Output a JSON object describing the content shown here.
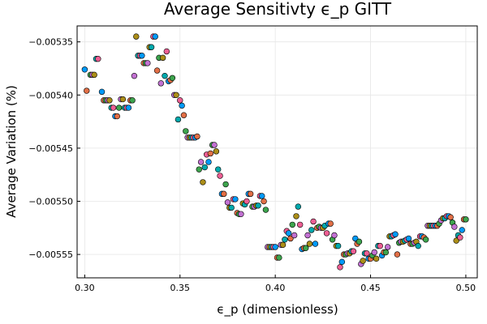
{
  "chart_data": {
    "type": "scatter",
    "title": "Average Sensitivty ϵ_p GITT",
    "xlabel": "ϵ_p (dimensionless)",
    "ylabel": "Average Variation (%)",
    "xlim": [
      0.296,
      0.506
    ],
    "ylim": [
      -0.005572,
      -0.005335
    ],
    "xticks": [
      0.3,
      0.35,
      0.4,
      0.45,
      0.5
    ],
    "xtick_labels": [
      "0.30",
      "0.35",
      "0.40",
      "0.45",
      "0.50"
    ],
    "yticks": [
      -0.00555,
      -0.0055,
      -0.00545,
      -0.0054,
      -0.00535
    ],
    "ytick_labels": [
      "−0.00555",
      "−0.00550",
      "−0.00545",
      "−0.00540",
      "−0.00535"
    ],
    "grid": true,
    "legend": "none",
    "palette": [
      "#009af9",
      "#e26f46",
      "#3da44d",
      "#c271d2",
      "#ac8e18",
      "#00a9ad",
      "#ed5e93"
    ],
    "points": [
      [
        0.3,
        -0.005376
      ],
      [
        0.301,
        -0.005396
      ],
      [
        0.303,
        -0.005381
      ],
      [
        0.304,
        -0.005381
      ],
      [
        0.305,
        -0.005381
      ],
      [
        0.306,
        -0.005366
      ],
      [
        0.307,
        -0.005366
      ],
      [
        0.309,
        -0.005397
      ],
      [
        0.31,
        -0.005405
      ],
      [
        0.311,
        -0.005405
      ],
      [
        0.312,
        -0.005405
      ],
      [
        0.313,
        -0.005405
      ],
      [
        0.314,
        -0.005412
      ],
      [
        0.315,
        -0.005412
      ],
      [
        0.316,
        -0.00542
      ],
      [
        0.317,
        -0.00542
      ],
      [
        0.318,
        -0.005412
      ],
      [
        0.319,
        -0.005404
      ],
      [
        0.32,
        -0.005404
      ],
      [
        0.321,
        -0.005412
      ],
      [
        0.322,
        -0.005412
      ],
      [
        0.323,
        -0.005412
      ],
      [
        0.324,
        -0.005405
      ],
      [
        0.325,
        -0.005405
      ],
      [
        0.326,
        -0.005382
      ],
      [
        0.327,
        -0.005345
      ],
      [
        0.328,
        -0.005363
      ],
      [
        0.329,
        -0.005363
      ],
      [
        0.33,
        -0.005363
      ],
      [
        0.331,
        -0.00537
      ],
      [
        0.332,
        -0.00537
      ],
      [
        0.333,
        -0.00537
      ],
      [
        0.334,
        -0.005355
      ],
      [
        0.335,
        -0.005355
      ],
      [
        0.336,
        -0.005345
      ],
      [
        0.337,
        -0.005345
      ],
      [
        0.338,
        -0.005377
      ],
      [
        0.339,
        -0.005365
      ],
      [
        0.34,
        -0.005389
      ],
      [
        0.341,
        -0.005365
      ],
      [
        0.342,
        -0.005382
      ],
      [
        0.343,
        -0.005359
      ],
      [
        0.344,
        -0.005387
      ],
      [
        0.345,
        -0.005386
      ],
      [
        0.346,
        -0.005384
      ],
      [
        0.347,
        -0.0054
      ],
      [
        0.348,
        -0.0054
      ],
      [
        0.349,
        -0.005423
      ],
      [
        0.35,
        -0.005405
      ],
      [
        0.351,
        -0.00541
      ],
      [
        0.352,
        -0.005419
      ],
      [
        0.353,
        -0.005434
      ],
      [
        0.354,
        -0.00544
      ],
      [
        0.355,
        -0.00544
      ],
      [
        0.356,
        -0.00544
      ],
      [
        0.357,
        -0.00544
      ],
      [
        0.358,
        -0.00544
      ],
      [
        0.359,
        -0.005439
      ],
      [
        0.36,
        -0.00547
      ],
      [
        0.361,
        -0.005463
      ],
      [
        0.362,
        -0.005482
      ],
      [
        0.363,
        -0.005468
      ],
      [
        0.364,
        -0.005456
      ],
      [
        0.365,
        -0.005463
      ],
      [
        0.366,
        -0.005455
      ],
      [
        0.367,
        -0.005447
      ],
      [
        0.368,
        -0.005447
      ],
      [
        0.369,
        -0.005453
      ],
      [
        0.37,
        -0.00547
      ],
      [
        0.371,
        -0.005476
      ],
      [
        0.372,
        -0.005493
      ],
      [
        0.373,
        -0.005493
      ],
      [
        0.374,
        -0.005484
      ],
      [
        0.375,
        -0.005501
      ],
      [
        0.376,
        -0.005506
      ],
      [
        0.377,
        -0.005506
      ],
      [
        0.378,
        -0.005498
      ],
      [
        0.379,
        -0.005498
      ],
      [
        0.38,
        -0.005511
      ],
      [
        0.381,
        -0.005512
      ],
      [
        0.382,
        -0.005512
      ],
      [
        0.383,
        -0.005502
      ],
      [
        0.384,
        -0.005503
      ],
      [
        0.385,
        -0.0055
      ],
      [
        0.386,
        -0.005493
      ],
      [
        0.387,
        -0.005493
      ],
      [
        0.388,
        -0.005505
      ],
      [
        0.389,
        -0.005505
      ],
      [
        0.39,
        -0.005504
      ],
      [
        0.391,
        -0.005504
      ],
      [
        0.392,
        -0.005495
      ],
      [
        0.393,
        -0.005495
      ],
      [
        0.394,
        -0.0055
      ],
      [
        0.395,
        -0.005508
      ],
      [
        0.396,
        -0.005543
      ],
      [
        0.397,
        -0.005543
      ],
      [
        0.398,
        -0.005543
      ],
      [
        0.399,
        -0.005543
      ],
      [
        0.4,
        -0.005543
      ],
      [
        0.401,
        -0.005553
      ],
      [
        0.402,
        -0.005553
      ],
      [
        0.403,
        -0.005541
      ],
      [
        0.404,
        -0.005541
      ],
      [
        0.405,
        -0.005536
      ],
      [
        0.406,
        -0.005528
      ],
      [
        0.407,
        -0.00553
      ],
      [
        0.408,
        -0.005535
      ],
      [
        0.409,
        -0.005522
      ],
      [
        0.41,
        -0.005532
      ],
      [
        0.411,
        -0.005514
      ],
      [
        0.412,
        -0.005505
      ],
      [
        0.413,
        -0.005522
      ],
      [
        0.414,
        -0.005545
      ],
      [
        0.415,
        -0.005544
      ],
      [
        0.416,
        -0.005544
      ],
      [
        0.417,
        -0.005532
      ],
      [
        0.418,
        -0.00554
      ],
      [
        0.419,
        -0.005527
      ],
      [
        0.42,
        -0.005519
      ],
      [
        0.421,
        -0.00554
      ],
      [
        0.422,
        -0.005525
      ],
      [
        0.423,
        -0.005524
      ],
      [
        0.424,
        -0.005525
      ],
      [
        0.425,
        -0.005525
      ],
      [
        0.426,
        -0.005523
      ],
      [
        0.427,
        -0.00553
      ],
      [
        0.428,
        -0.005521
      ],
      [
        0.429,
        -0.005521
      ],
      [
        0.43,
        -0.005536
      ],
      [
        0.431,
        -0.005532
      ],
      [
        0.432,
        -0.005542
      ],
      [
        0.433,
        -0.005542
      ],
      [
        0.434,
        -0.005562
      ],
      [
        0.435,
        -0.005557
      ],
      [
        0.436,
        -0.00555
      ],
      [
        0.437,
        -0.00555
      ],
      [
        0.438,
        -0.005549
      ],
      [
        0.439,
        -0.005549
      ],
      [
        0.44,
        -0.005547
      ],
      [
        0.441,
        -0.005547
      ],
      [
        0.442,
        -0.005535
      ],
      [
        0.443,
        -0.00554
      ],
      [
        0.444,
        -0.005538
      ],
      [
        0.445,
        -0.005559
      ],
      [
        0.446,
        -0.005556
      ],
      [
        0.447,
        -0.005549
      ],
      [
        0.448,
        -0.005549
      ],
      [
        0.449,
        -0.005554
      ],
      [
        0.45,
        -0.005554
      ],
      [
        0.451,
        -0.005551
      ],
      [
        0.452,
        -0.005548
      ],
      [
        0.453,
        -0.005554
      ],
      [
        0.454,
        -0.005542
      ],
      [
        0.455,
        -0.005542
      ],
      [
        0.456,
        -0.005551
      ],
      [
        0.457,
        -0.005548
      ],
      [
        0.458,
        -0.005548
      ],
      [
        0.459,
        -0.005543
      ],
      [
        0.46,
        -0.005533
      ],
      [
        0.461,
        -0.005533
      ],
      [
        0.462,
        -0.005532
      ],
      [
        0.463,
        -0.005531
      ],
      [
        0.464,
        -0.00555
      ],
      [
        0.465,
        -0.005539
      ],
      [
        0.466,
        -0.005538
      ],
      [
        0.467,
        -0.005538
      ],
      [
        0.468,
        -0.005537
      ],
      [
        0.469,
        -0.005536
      ],
      [
        0.47,
        -0.005535
      ],
      [
        0.471,
        -0.00554
      ],
      [
        0.472,
        -0.00554
      ],
      [
        0.473,
        -0.005539
      ],
      [
        0.474,
        -0.005538
      ],
      [
        0.475,
        -0.005542
      ],
      [
        0.476,
        -0.005533
      ],
      [
        0.477,
        -0.005533
      ],
      [
        0.478,
        -0.005534
      ],
      [
        0.479,
        -0.005536
      ],
      [
        0.48,
        -0.005523
      ],
      [
        0.481,
        -0.005523
      ],
      [
        0.482,
        -0.005523
      ],
      [
        0.483,
        -0.005523
      ],
      [
        0.484,
        -0.005523
      ],
      [
        0.485,
        -0.005523
      ],
      [
        0.486,
        -0.005521
      ],
      [
        0.487,
        -0.005518
      ],
      [
        0.488,
        -0.005516
      ],
      [
        0.489,
        -0.005516
      ],
      [
        0.49,
        -0.005514
      ],
      [
        0.491,
        -0.005514
      ],
      [
        0.492,
        -0.005515
      ],
      [
        0.493,
        -0.00552
      ],
      [
        0.494,
        -0.005524
      ],
      [
        0.495,
        -0.005537
      ],
      [
        0.496,
        -0.005532
      ],
      [
        0.497,
        -0.005534
      ],
      [
        0.498,
        -0.005527
      ],
      [
        0.499,
        -0.005517
      ],
      [
        0.5,
        -0.005517
      ]
    ]
  }
}
